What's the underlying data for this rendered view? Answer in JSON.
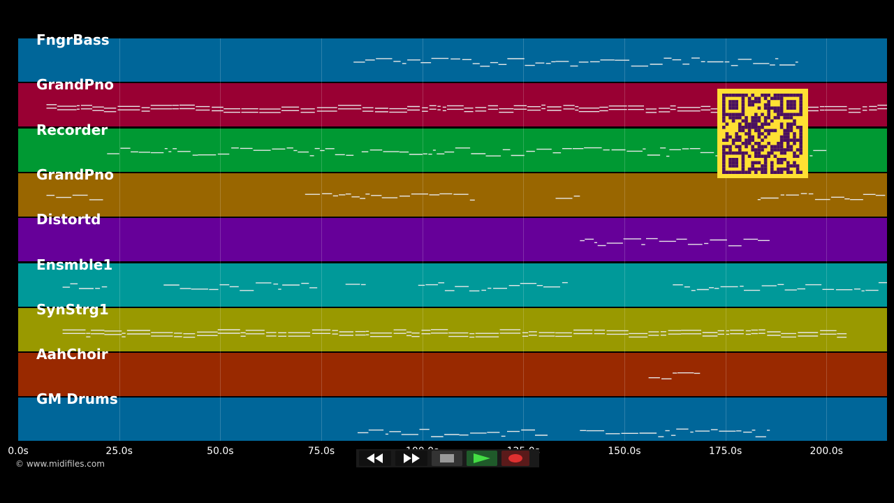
{
  "tracks": [
    {
      "label": "FngrBass",
      "color": "#006699"
    },
    {
      "label": "GrandPno",
      "color": "#990033"
    },
    {
      "label": "Recorder",
      "color": "#009933"
    },
    {
      "label": "GrandPno",
      "color": "#996600"
    },
    {
      "label": "Distortd",
      "color": "#660099"
    },
    {
      "label": "Ensmble1",
      "color": "#009999"
    },
    {
      "label": "SynStrg1",
      "color": "#999900"
    },
    {
      "label": "AahChoir",
      "color": "#992900"
    },
    {
      "label": "GM Drums",
      "color": "#006699"
    }
  ],
  "timeline": {
    "ticks": [
      "0.0s",
      "25.0s",
      "50.0s",
      "75.0s",
      "100.0s",
      "125.0s",
      "150.0s",
      "175.0s",
      "200.0s"
    ],
    "tick_values": [
      0,
      25,
      50,
      75,
      100,
      125,
      150,
      175,
      200
    ],
    "range": [
      0,
      215
    ]
  },
  "note_spans": [
    [
      [
        83,
        193
      ]
    ],
    [
      [
        7,
        215
      ]
    ],
    [
      [
        22,
        83
      ],
      [
        85,
        200
      ]
    ],
    [
      [
        7,
        21
      ],
      [
        71,
        113
      ],
      [
        133,
        139
      ],
      [
        183,
        215
      ]
    ],
    [
      [
        139,
        186
      ]
    ],
    [
      [
        11,
        22
      ],
      [
        36,
        74
      ],
      [
        81,
        86
      ],
      [
        99,
        136
      ],
      [
        162,
        215
      ]
    ],
    [
      [
        11,
        205
      ]
    ],
    [
      [
        156,
        169
      ]
    ],
    [
      [
        84,
        131
      ],
      [
        139,
        186
      ]
    ]
  ],
  "footer": {
    "copyright": "© www.midifiles.com"
  },
  "transport": {
    "rewind": "rewind-icon",
    "fast_forward": "fast-forward-icon",
    "stop": "stop-icon",
    "play": "play-icon",
    "record": "record-icon"
  },
  "colors": {
    "background": "#000000",
    "note": "#e8e8e8",
    "qr_fg": "#4a1060",
    "qr_bg": "#ffe033"
  }
}
